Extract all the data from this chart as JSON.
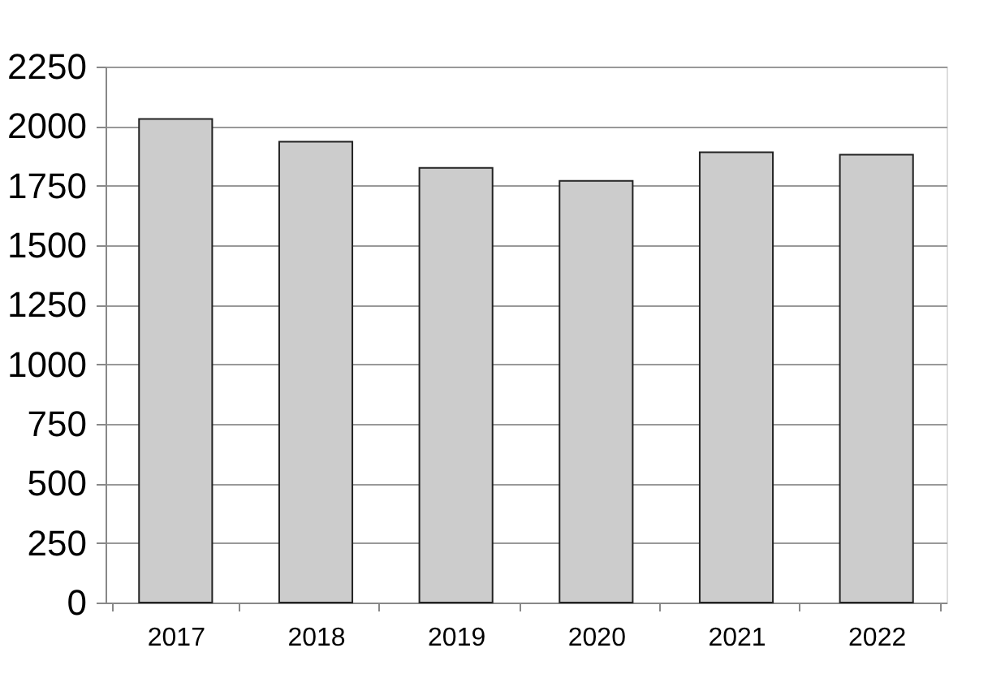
{
  "chart_data": {
    "type": "bar",
    "categories": [
      "2017",
      "2018",
      "2019",
      "2020",
      "2021",
      "2022"
    ],
    "values": [
      2030,
      1935,
      1825,
      1770,
      1890,
      1880
    ],
    "color": "#cccccc",
    "ylim": [
      0,
      2250
    ],
    "yticks": [
      0,
      250,
      500,
      750,
      1000,
      1250,
      1500,
      1750,
      2000,
      2250
    ],
    "grid": "y"
  }
}
